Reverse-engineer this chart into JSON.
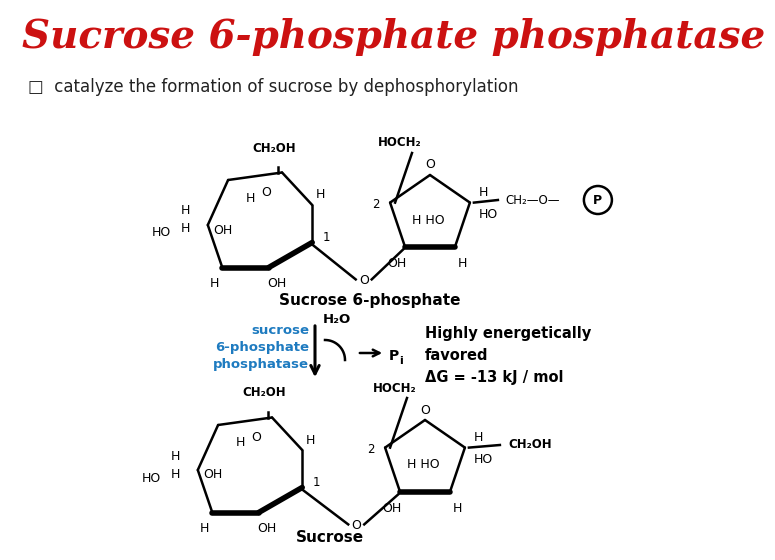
{
  "title": "Sucrose 6-phosphate phosphatase",
  "title_color": "#CC1111",
  "title_fontsize": 28,
  "bg_color": "#FFFFFF",
  "enzyme_color": "#1E7BC0",
  "arrow_color": "#333333",
  "label_sucrose6p": "Sucrose 6-phosphate",
  "label_sucrose": "Sucrose",
  "reaction_energy_line1": "Highly energetically",
  "reaction_energy_line2": "favored",
  "reaction_energy_line3": "ΔG = -13 kJ / mol"
}
